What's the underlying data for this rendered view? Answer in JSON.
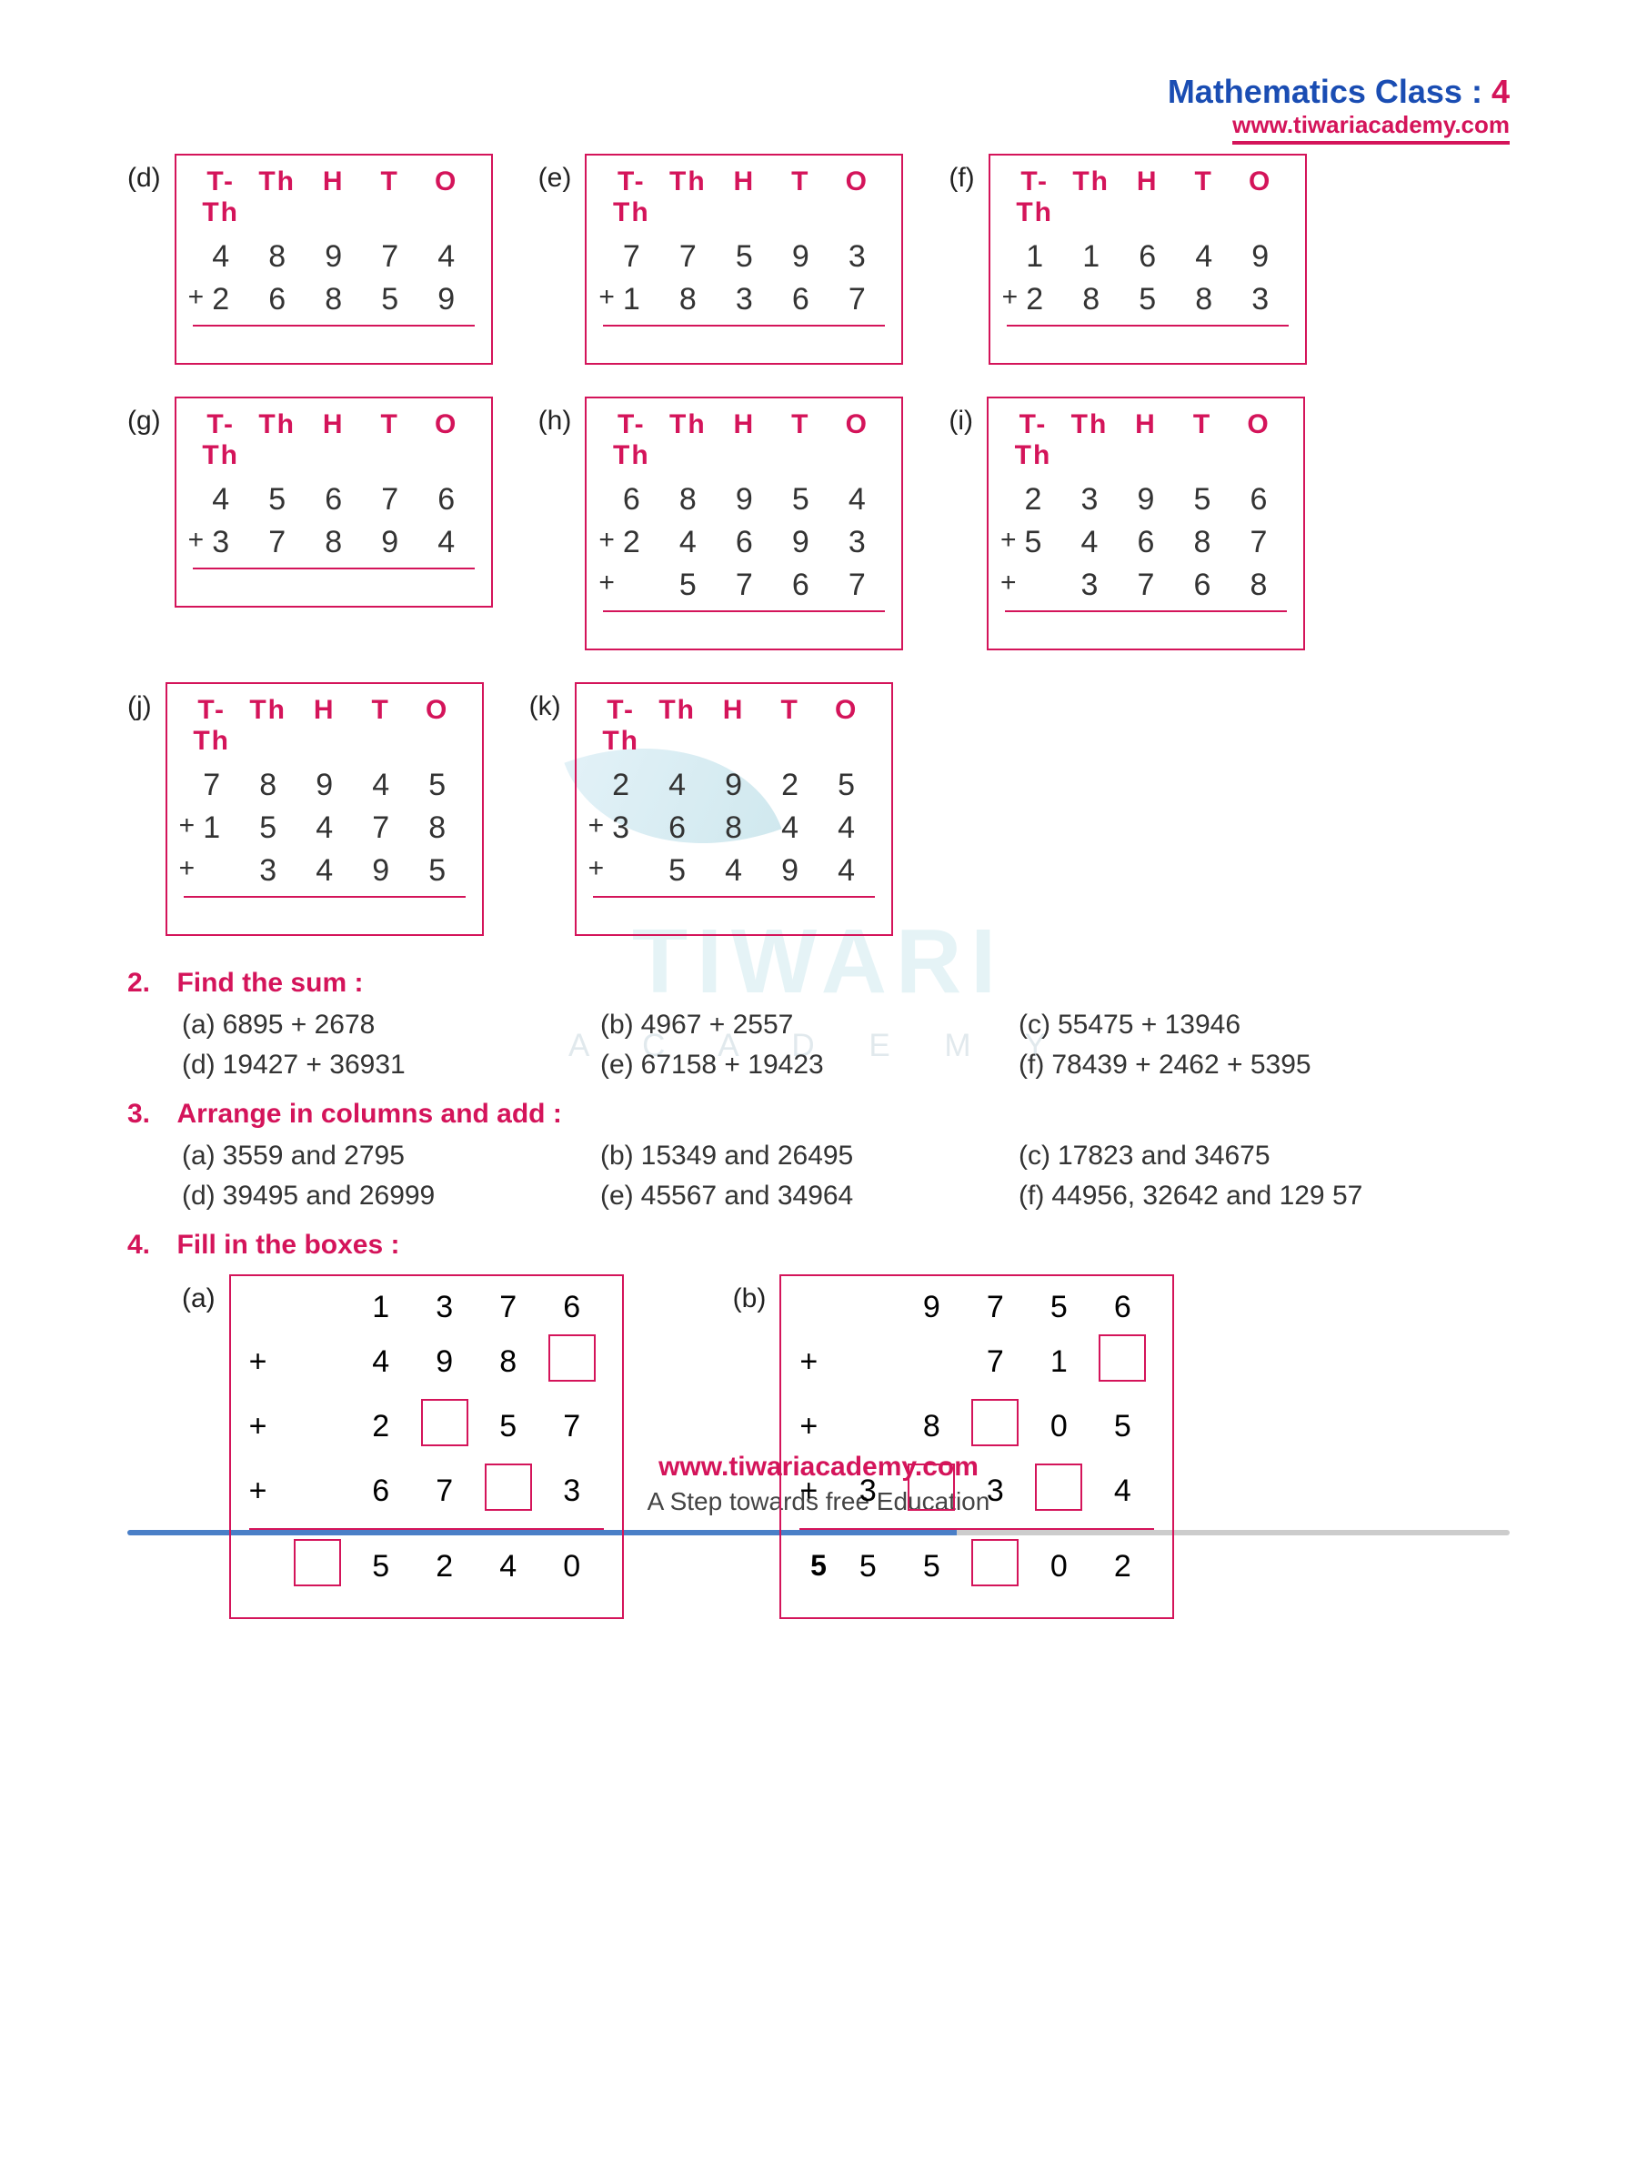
{
  "header": {
    "subject": "Mathematics Class :",
    "class_num": "4",
    "website": "www.tiwariacademy.com"
  },
  "watermark": {
    "main": "TIWARI",
    "sub": "A C A D E M Y"
  },
  "place_values": [
    "T-Th",
    "Th",
    "H",
    "T",
    "O"
  ],
  "additions": {
    "row1": [
      {
        "label": "(d)",
        "rows": [
          [
            "4",
            "8",
            "9",
            "7",
            "4"
          ],
          [
            "2",
            "6",
            "8",
            "5",
            "9"
          ]
        ],
        "ops": [
          "",
          "+"
        ]
      },
      {
        "label": "(e)",
        "rows": [
          [
            "7",
            "7",
            "5",
            "9",
            "3"
          ],
          [
            "1",
            "8",
            "3",
            "6",
            "7"
          ]
        ],
        "ops": [
          "",
          "+"
        ]
      },
      {
        "label": "(f)",
        "rows": [
          [
            "1",
            "1",
            "6",
            "4",
            "9"
          ],
          [
            "2",
            "8",
            "5",
            "8",
            "3"
          ]
        ],
        "ops": [
          "",
          "+"
        ]
      }
    ],
    "row2": [
      {
        "label": "(g)",
        "rows": [
          [
            "4",
            "5",
            "6",
            "7",
            "6"
          ],
          [
            "3",
            "7",
            "8",
            "9",
            "4"
          ]
        ],
        "ops": [
          "",
          "+"
        ]
      },
      {
        "label": "(h)",
        "rows": [
          [
            "6",
            "8",
            "9",
            "5",
            "4"
          ],
          [
            "2",
            "4",
            "6",
            "9",
            "3"
          ],
          [
            "",
            "5",
            "7",
            "6",
            "7"
          ]
        ],
        "ops": [
          "",
          "+",
          "+"
        ]
      },
      {
        "label": "(i)",
        "rows": [
          [
            "2",
            "3",
            "9",
            "5",
            "6"
          ],
          [
            "5",
            "4",
            "6",
            "8",
            "7"
          ],
          [
            "",
            "3",
            "7",
            "6",
            "8"
          ]
        ],
        "ops": [
          "",
          "+",
          "+"
        ]
      }
    ],
    "row3": [
      {
        "label": "(j)",
        "rows": [
          [
            "7",
            "8",
            "9",
            "4",
            "5"
          ],
          [
            "1",
            "5",
            "4",
            "7",
            "8"
          ],
          [
            "",
            "3",
            "4",
            "9",
            "5"
          ]
        ],
        "ops": [
          "",
          "+",
          "+"
        ]
      },
      {
        "label": "(k)",
        "rows": [
          [
            "2",
            "4",
            "9",
            "2",
            "5"
          ],
          [
            "3",
            "6",
            "8",
            "4",
            "4"
          ],
          [
            "",
            "5",
            "4",
            "9",
            "4"
          ]
        ],
        "ops": [
          "",
          "+",
          "+"
        ]
      }
    ]
  },
  "q2": {
    "num": "2.",
    "title": "Find the sum :",
    "items": [
      {
        "lbl": "(a)",
        "txt": "6895 + 2678"
      },
      {
        "lbl": "(b)",
        "txt": "4967 + 2557"
      },
      {
        "lbl": "(c)",
        "txt": "55475 + 13946"
      },
      {
        "lbl": "(d)",
        "txt": "19427 + 36931"
      },
      {
        "lbl": "(e)",
        "txt": "67158 + 19423"
      },
      {
        "lbl": "(f)",
        "txt": "78439 + 2462 + 5395"
      }
    ]
  },
  "q3": {
    "num": "3.",
    "title": "Arrange in columns and add :",
    "items": [
      {
        "lbl": "(a)",
        "txt": "3559 and 2795"
      },
      {
        "lbl": "(b)",
        "txt": "15349 and 26495"
      },
      {
        "lbl": "(c)",
        "txt": "17823 and 34675"
      },
      {
        "lbl": "(d)",
        "txt": "39495 and 26999"
      },
      {
        "lbl": "(e)",
        "txt": "45567 and 34964"
      },
      {
        "lbl": "(f)",
        "txt": "44956, 32642 and 129 57"
      }
    ]
  },
  "q4": {
    "num": "4.",
    "title": "Fill in the boxes :",
    "a": {
      "label": "(a)",
      "rows": [
        {
          "op": "",
          "c": [
            "",
            "1",
            "3",
            "7",
            "6"
          ]
        },
        {
          "op": "+",
          "c": [
            "",
            "4",
            "9",
            "8",
            "BOX"
          ]
        },
        {
          "op": "+",
          "c": [
            "",
            "2",
            "BOX",
            "5",
            "7"
          ]
        },
        {
          "op": "+",
          "c": [
            "",
            "6",
            "7",
            "BOX",
            "3"
          ]
        }
      ],
      "ans": [
        "BOX",
        "5",
        "2",
        "4",
        "0"
      ]
    },
    "b": {
      "label": "(b)",
      "rows": [
        {
          "op": "",
          "c": [
            "",
            "9",
            "7",
            "5",
            "6"
          ]
        },
        {
          "op": "+",
          "c": [
            "",
            "",
            "7",
            "1",
            "BOX"
          ]
        },
        {
          "op": "+",
          "c": [
            "",
            "8",
            "BOX",
            "0",
            "5"
          ]
        },
        {
          "op": "+",
          "c": [
            "3",
            "BOX",
            "3",
            "BOX",
            "4"
          ]
        }
      ],
      "ans": [
        "5",
        "5",
        "BOX",
        "0",
        "2"
      ]
    }
  },
  "footer": {
    "website": "www.tiwariacademy.com",
    "tagline": "A Step towards free Education",
    "page": "5"
  },
  "colors": {
    "pink": "#d4145a",
    "blue": "#1a4db3"
  }
}
